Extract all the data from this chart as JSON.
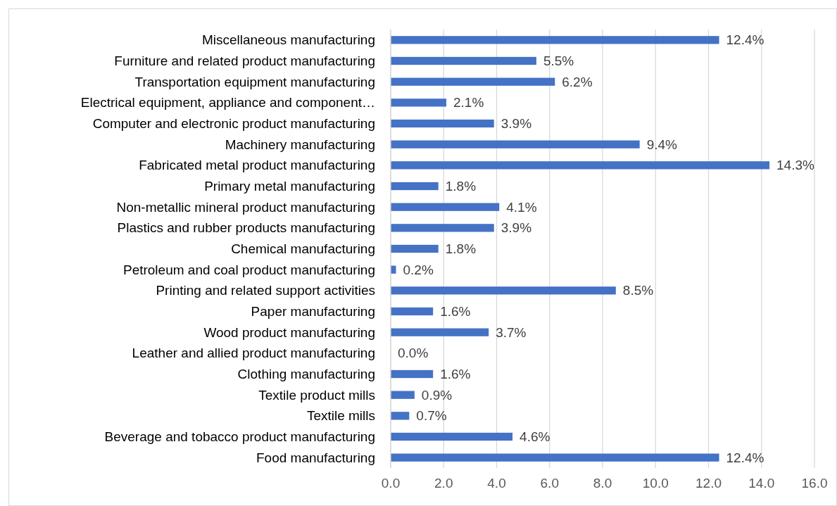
{
  "chart_data": {
    "type": "bar",
    "orientation": "horizontal",
    "categories": [
      "Miscellaneous manufacturing",
      "Furniture and related product manufacturing",
      "Transportation equipment manufacturing",
      "Electrical equipment, appliance and component…",
      "Computer and electronic product manufacturing",
      "Machinery manufacturing",
      "Fabricated metal product manufacturing",
      "Primary metal manufacturing",
      "Non-metallic mineral product manufacturing",
      "Plastics and rubber products manufacturing",
      "Chemical manufacturing",
      "Petroleum and coal product manufacturing",
      "Printing and related support activities",
      "Paper manufacturing",
      "Wood product manufacturing",
      "Leather and allied product manufacturing",
      "Clothing manufacturing",
      "Textile product mills",
      "Textile mills",
      "Beverage and tobacco product manufacturing",
      "Food manufacturing"
    ],
    "values": [
      12.4,
      5.5,
      6.2,
      2.1,
      3.9,
      9.4,
      14.3,
      1.8,
      4.1,
      3.9,
      1.8,
      0.2,
      8.5,
      1.6,
      3.7,
      0.0,
      1.6,
      0.9,
      0.7,
      4.6,
      12.4
    ],
    "value_labels": [
      "12.4%",
      "5.5%",
      "6.2%",
      "2.1%",
      "3.9%",
      "9.4%",
      "14.3%",
      "1.8%",
      "4.1%",
      "3.9%",
      "1.8%",
      "0.2%",
      "8.5%",
      "1.6%",
      "3.7%",
      "0.0%",
      "1.6%",
      "0.9%",
      "0.7%",
      "4.6%",
      "12.4%"
    ],
    "color": "#4472c4",
    "xlim": [
      0,
      16
    ],
    "xticks": [
      {
        "value": 0,
        "label": "0.0"
      },
      {
        "value": 2,
        "label": "2.0"
      },
      {
        "value": 4,
        "label": "4.0"
      },
      {
        "value": 6,
        "label": "6.0"
      },
      {
        "value": 8,
        "label": "8.0"
      },
      {
        "value": 10,
        "label": "10.0"
      },
      {
        "value": 12,
        "label": "12.0"
      },
      {
        "value": 14,
        "label": "14.0"
      },
      {
        "value": 16,
        "label": "16.0"
      }
    ],
    "grid": "x"
  }
}
